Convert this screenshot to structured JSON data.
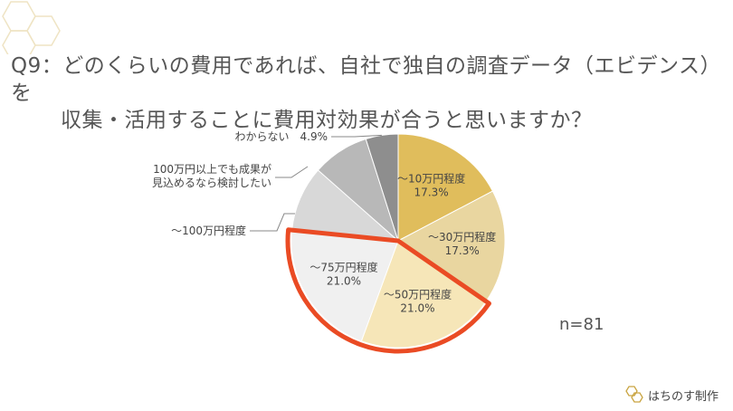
{
  "question": {
    "number": "Q9：",
    "line1": "どのくらいの費用であれば、自社で独自の調査データ（エビデンス）を",
    "line2": "収集・活用することに費用対効果が合うと思いますか？"
  },
  "sample_size": "n=81",
  "footer": {
    "brand": "はちのす制作",
    "icon": "hexagon-logo-icon"
  },
  "colors": {
    "slice_10": "#e0bd5c",
    "slice_30": "#e9d6a0",
    "slice_50": "#f6e6b8",
    "slice_75": "#f0f0f0",
    "slice_100": "#d8d8d8",
    "slice_consider": "#b8b8b8",
    "slice_unknown": "#8e8e8e",
    "highlight": "#ea4b24"
  },
  "chart_data": {
    "type": "pie",
    "unit": "%",
    "slices": [
      {
        "label": "〜10万円程度",
        "value": 17.3,
        "value_label": "17.3%"
      },
      {
        "label": "〜30万円程度",
        "value": 17.3,
        "value_label": "17.3%"
      },
      {
        "label": "〜50万円程度",
        "value": 21.0,
        "value_label": "21.0%"
      },
      {
        "label": "〜75万円程度",
        "value": 21.0,
        "value_label": "21.0%"
      },
      {
        "label": "〜100万円程度",
        "value": 9.9,
        "value_label": ""
      },
      {
        "label": "100万円以上でも成果が\n見込めるなら検討したい",
        "value": 8.6,
        "value_label": ""
      },
      {
        "label": "わからない",
        "value": 4.9,
        "value_label": "4.9%"
      }
    ],
    "highlighted_slices": [
      "〜50万円程度",
      "〜75万円程度"
    ]
  }
}
